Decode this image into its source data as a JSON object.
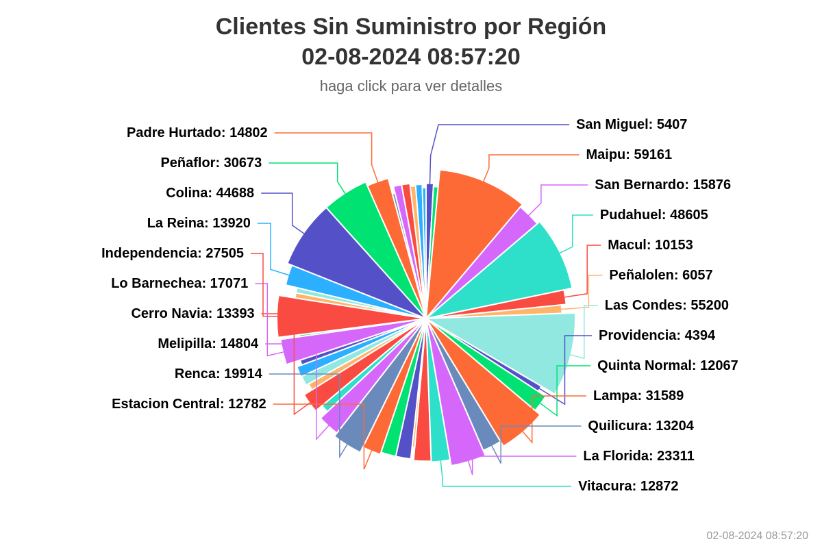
{
  "chart_data": {
    "type": "pie",
    "title": "Clientes Sin Suministro por Región",
    "title_line2": "02-08-2024 08:57:20",
    "subtitle": "haga click para ver detalles",
    "credit": "02-08-2024 08:57:20",
    "slices": [
      {
        "name": "San Miguel",
        "value": 5407,
        "color": "#5450c7",
        "label": true
      },
      {
        "name": "",
        "value": 3500,
        "color": "#00e272",
        "label": false
      },
      {
        "name": "Maipu",
        "value": 59161,
        "color": "#fe6a35",
        "label": true
      },
      {
        "name": "San Bernardo",
        "value": 15876,
        "color": "#d568fb",
        "label": true
      },
      {
        "name": "Pudahuel",
        "value": 48605,
        "color": "#2ee0ca",
        "label": true
      },
      {
        "name": "Macul",
        "value": 10153,
        "color": "#fa4b42",
        "label": true
      },
      {
        "name": "Peñalolen",
        "value": 6057,
        "color": "#feb56a",
        "label": true
      },
      {
        "name": "Las Condes",
        "value": 55200,
        "color": "#91e8e1",
        "label": true
      },
      {
        "name": "Providencia",
        "value": 4394,
        "color": "#5450c7",
        "label": true
      },
      {
        "name": "Quinta Normal",
        "value": 12067,
        "color": "#00e272",
        "label": true
      },
      {
        "name": "Lampa",
        "value": 31589,
        "color": "#fe6a35",
        "label": true
      },
      {
        "name": "Quilicura",
        "value": 13204,
        "color": "#6b8abc",
        "label": true
      },
      {
        "name": "La Florida",
        "value": 23311,
        "color": "#d568fb",
        "label": true
      },
      {
        "name": "Vitacura",
        "value": 12872,
        "color": "#2ee0ca",
        "label": true
      },
      {
        "name": "",
        "value": 12000,
        "color": "#fa4b42",
        "label": false
      },
      {
        "name": "",
        "value": 2000,
        "color": "#feb56a",
        "label": false
      },
      {
        "name": "",
        "value": 10500,
        "color": "#5450c7",
        "label": false
      },
      {
        "name": "",
        "value": 10500,
        "color": "#00e272",
        "label": false
      },
      {
        "name": "Estacion Central",
        "value": 12782,
        "color": "#fe6a35",
        "label": true
      },
      {
        "name": "Renca",
        "value": 19914,
        "color": "#6b8abc",
        "label": true
      },
      {
        "name": "Melipilla",
        "value": 14804,
        "color": "#d568fb",
        "label": true
      },
      {
        "name": "",
        "value": 5800,
        "color": "#2ee0ca",
        "label": false
      },
      {
        "name": "Cerro Navia",
        "value": 13393,
        "color": "#fa4b42",
        "label": true
      },
      {
        "name": "",
        "value": 5000,
        "color": "#feb56a",
        "label": false
      },
      {
        "name": "",
        "value": 7000,
        "color": "#91e8e1",
        "label": false
      },
      {
        "name": "",
        "value": 7500,
        "color": "#2caffe",
        "label": false
      },
      {
        "name": "",
        "value": 3800,
        "color": "#5450c7",
        "label": false
      },
      {
        "name": "Lo Barnechea",
        "value": 17071,
        "color": "#d568fb",
        "label": true
      },
      {
        "name": "",
        "value": 1500,
        "color": "#00e272",
        "label": false
      },
      {
        "name": "Independencia",
        "value": 27505,
        "color": "#fa4b42",
        "label": true
      },
      {
        "name": "",
        "value": 3800,
        "color": "#feb56a",
        "label": false
      },
      {
        "name": "",
        "value": 3800,
        "color": "#91e8e1",
        "label": false
      },
      {
        "name": "La Reina",
        "value": 13920,
        "color": "#2caffe",
        "label": true
      },
      {
        "name": "Colina",
        "value": 44688,
        "color": "#5450c7",
        "label": true
      },
      {
        "name": "Peñaflor",
        "value": 30673,
        "color": "#00e272",
        "label": true
      },
      {
        "name": "Padre Hurtado",
        "value": 14802,
        "color": "#fe6a35",
        "label": true
      },
      {
        "name": "",
        "value": 2000,
        "color": "#6b8abc",
        "label": false
      },
      {
        "name": "",
        "value": 6000,
        "color": "#d568fb",
        "label": false
      },
      {
        "name": "",
        "value": 6000,
        "color": "#fa4b42",
        "label": false
      },
      {
        "name": "",
        "value": 4000,
        "color": "#feb56a",
        "label": false
      },
      {
        "name": "",
        "value": 4800,
        "color": "#2caffe",
        "label": false
      },
      {
        "name": "",
        "value": 2800,
        "color": "#2caffe",
        "label": false
      }
    ]
  }
}
